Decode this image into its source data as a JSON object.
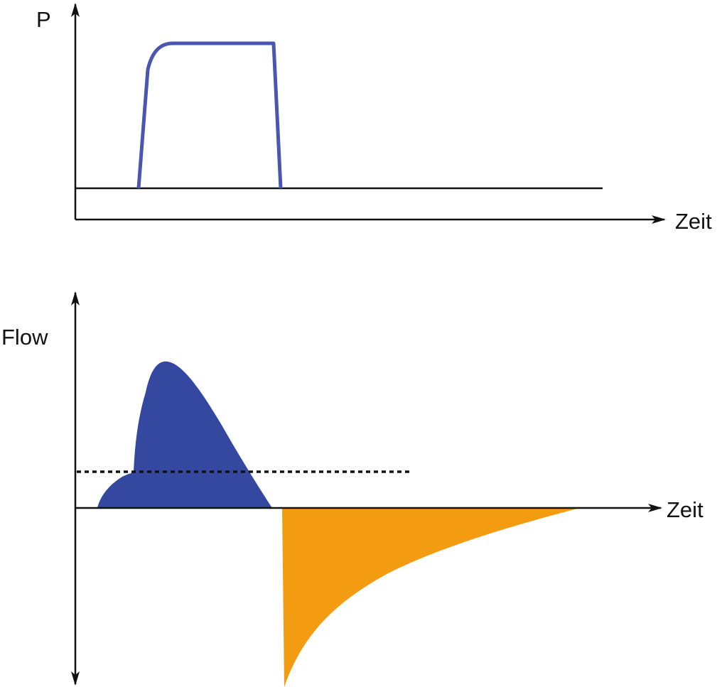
{
  "pressure_chart": {
    "y_label": "P",
    "x_label": "Zeit",
    "curve_color": "#4b56b0"
  },
  "flow_chart": {
    "y_label": "Flow",
    "x_label": "Zeit",
    "inspiration_color": "#3548a0",
    "expiration_color": "#f39c12",
    "threshold_style": "dotted"
  },
  "axis_color": "#111111"
}
